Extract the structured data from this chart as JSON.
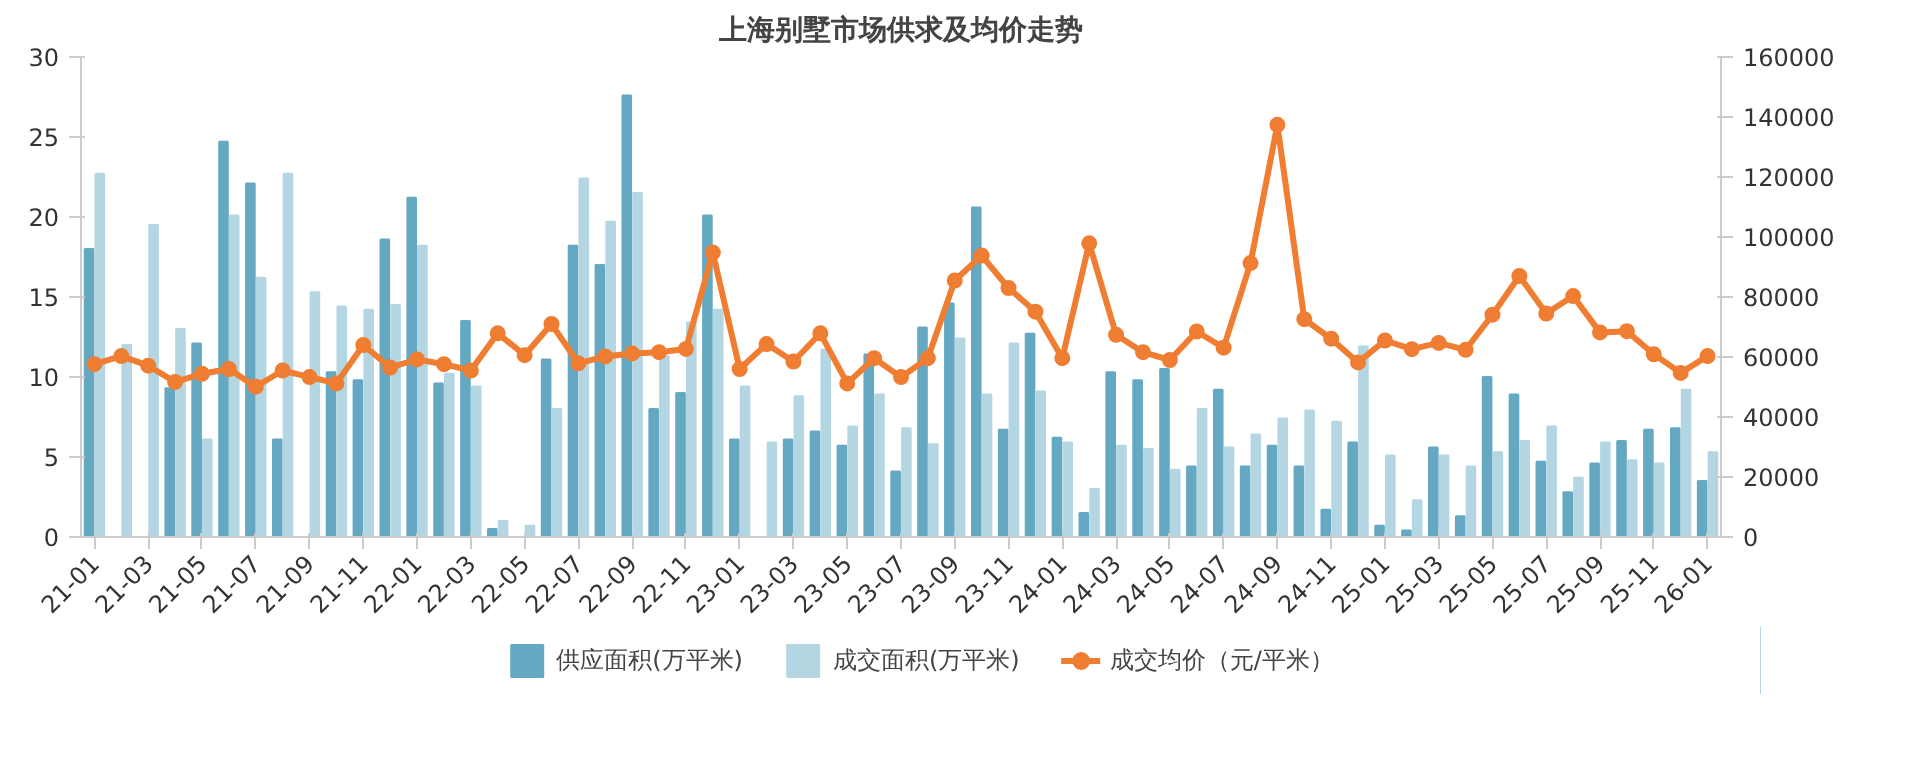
{
  "chart_data": {
    "type": "bar",
    "title": "上海别墅市场供求及均价走势",
    "categories": [
      "21-01",
      null,
      "21-03",
      null,
      "21-05",
      null,
      "21-07",
      null,
      "21-09",
      null,
      "21-11",
      null,
      "22-01",
      null,
      "22-03",
      null,
      "22-05",
      null,
      "22-07",
      null,
      "22-09",
      null,
      "22-11",
      null,
      "23-01",
      null,
      "23-03",
      null,
      "23-05",
      null,
      "23-07",
      null,
      "23-09",
      null,
      "23-11",
      null,
      "24-01",
      null,
      "24-03",
      null,
      "24-05",
      null,
      "24-07",
      null,
      "24-09",
      null,
      "24-11",
      null,
      "25-01",
      null,
      "25-03",
      null,
      "25-05",
      null,
      "25-07",
      null,
      "25-09",
      null,
      "25-11",
      null,
      "26-01"
    ],
    "series": [
      {
        "name": "供应面积(万平米)",
        "color": "#64a8c2",
        "values": [
          18.0,
          null,
          null,
          9.3,
          12.1,
          24.7,
          22.1,
          6.1,
          null,
          10.3,
          9.8,
          18.6,
          21.2,
          9.6,
          13.5,
          0.5,
          null,
          11.1,
          18.2,
          17.0,
          27.6,
          8.0,
          9.0,
          20.1,
          6.1,
          null,
          6.1,
          6.6,
          5.7,
          11.4,
          4.1,
          13.1,
          14.6,
          20.6,
          6.7,
          12.7,
          6.2,
          1.5,
          10.3,
          9.8,
          10.5,
          4.4,
          9.2,
          4.4,
          5.7,
          4.4,
          1.7,
          5.9,
          0.7,
          0.4,
          5.6,
          1.3,
          10.0,
          8.9,
          4.7,
          2.8,
          4.6,
          6.0,
          6.7,
          6.8,
          3.5
        ]
      },
      {
        "name": "成交面积(万平米)",
        "color": "#b3d6e2",
        "values": [
          22.7,
          12.0,
          19.5,
          13.0,
          6.1,
          20.1,
          16.2,
          22.7,
          15.3,
          14.4,
          14.2,
          14.5,
          18.2,
          10.2,
          9.4,
          1.0,
          0.7,
          8.0,
          22.4,
          19.7,
          21.5,
          11.3,
          13.4,
          14.2,
          9.4,
          5.9,
          8.8,
          11.7,
          6.9,
          8.9,
          6.8,
          5.8,
          12.4,
          8.9,
          12.1,
          9.1,
          5.9,
          3.0,
          5.7,
          5.5,
          4.2,
          8.0,
          5.6,
          6.4,
          7.4,
          7.9,
          7.2,
          11.9,
          5.1,
          2.3,
          5.1,
          4.4,
          5.3,
          6.0,
          6.9,
          3.7,
          5.9,
          4.8,
          4.6,
          9.2,
          5.3
        ]
      },
      {
        "name": "成交均价（元/平米）",
        "color": "#ef7d32",
        "type": "line",
        "axis": "y2",
        "values": [
          57600,
          60300,
          57100,
          51700,
          54400,
          56000,
          50100,
          55500,
          53300,
          51200,
          64000,
          56500,
          59200,
          57600,
          55500,
          67900,
          60600,
          71000,
          57900,
          60200,
          61200,
          61600,
          62700,
          94800,
          56000,
          64300,
          58500,
          67900,
          51200,
          59600,
          53300,
          59600,
          85500,
          93800,
          83000,
          75100,
          59600,
          97900,
          67400,
          61600,
          59000,
          68500,
          63100,
          91300,
          137400,
          72600,
          66100,
          58200,
          65500,
          62600,
          64700,
          62400,
          74100,
          87000,
          74500,
          80300,
          68200,
          68600,
          60900,
          54700,
          60300
        ]
      }
    ],
    "marker": "circle",
    "ylim": [
      0,
      30
    ],
    "yticks": [
      0,
      5,
      10,
      15,
      20,
      25,
      30
    ],
    "y2lim": [
      0,
      160000
    ],
    "y2ticks": [
      0,
      20000,
      40000,
      60000,
      80000,
      100000,
      120000,
      140000,
      160000
    ],
    "legend": "bottom"
  }
}
